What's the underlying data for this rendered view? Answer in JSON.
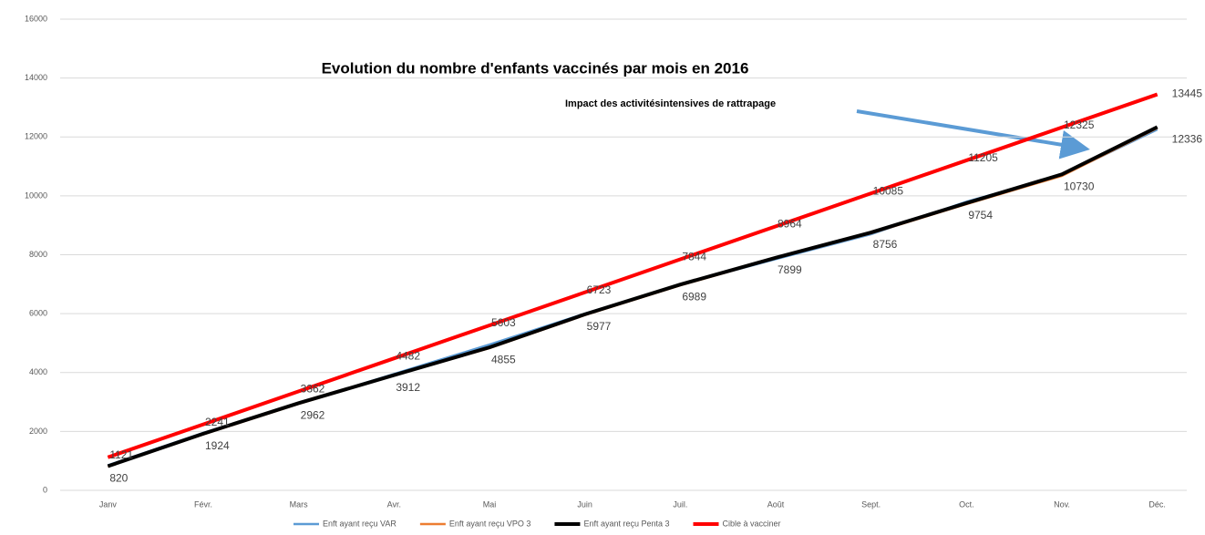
{
  "chart_data": {
    "type": "line",
    "title": "Evolution du nombre d'enfants vaccinés par mois en 2016",
    "annotation": "Impact des activitésintensives de rattrapage",
    "categories": [
      "Janv",
      "Févr.",
      "Mars",
      "Avr.",
      "Mai",
      "Juin",
      "Juil.",
      "Août",
      "Sept.",
      "Oct.",
      "Nov.",
      "Déc."
    ],
    "series": [
      {
        "name": "Enft ayant reçu VAR",
        "color": "#5b9bd5",
        "width": 2.5,
        "values": [
          850,
          1950,
          2950,
          3950,
          4950,
          6000,
          6980,
          7850,
          8700,
          9800,
          10700,
          12250
        ]
      },
      {
        "name": "Enft ayant reçu VPO 3",
        "color": "#ed7d31",
        "width": 2.5,
        "values": [
          810,
          1900,
          2940,
          3900,
          4830,
          5950,
          6960,
          7880,
          8730,
          9720,
          10680,
          12300
        ]
      },
      {
        "name": "Enft ayant reçu  Penta 3",
        "color": "#000000",
        "width": 4,
        "labels": "below",
        "values": [
          820,
          1924,
          2962,
          3912,
          4855,
          5977,
          6989,
          7899,
          8756,
          9754,
          10730,
          12336
        ]
      },
      {
        "name": "Cible à vacciner",
        "color": "#ff0000",
        "width": 4,
        "labels": "above",
        "values": [
          1121,
          2241,
          3362,
          4482,
          5603,
          6723,
          7844,
          8964,
          10085,
          11205,
          12325,
          13445
        ]
      }
    ],
    "ylim": [
      0,
      16000
    ],
    "yticks": [
      0,
      2000,
      4000,
      6000,
      8000,
      10000,
      12000,
      14000,
      16000
    ],
    "grid": true
  }
}
